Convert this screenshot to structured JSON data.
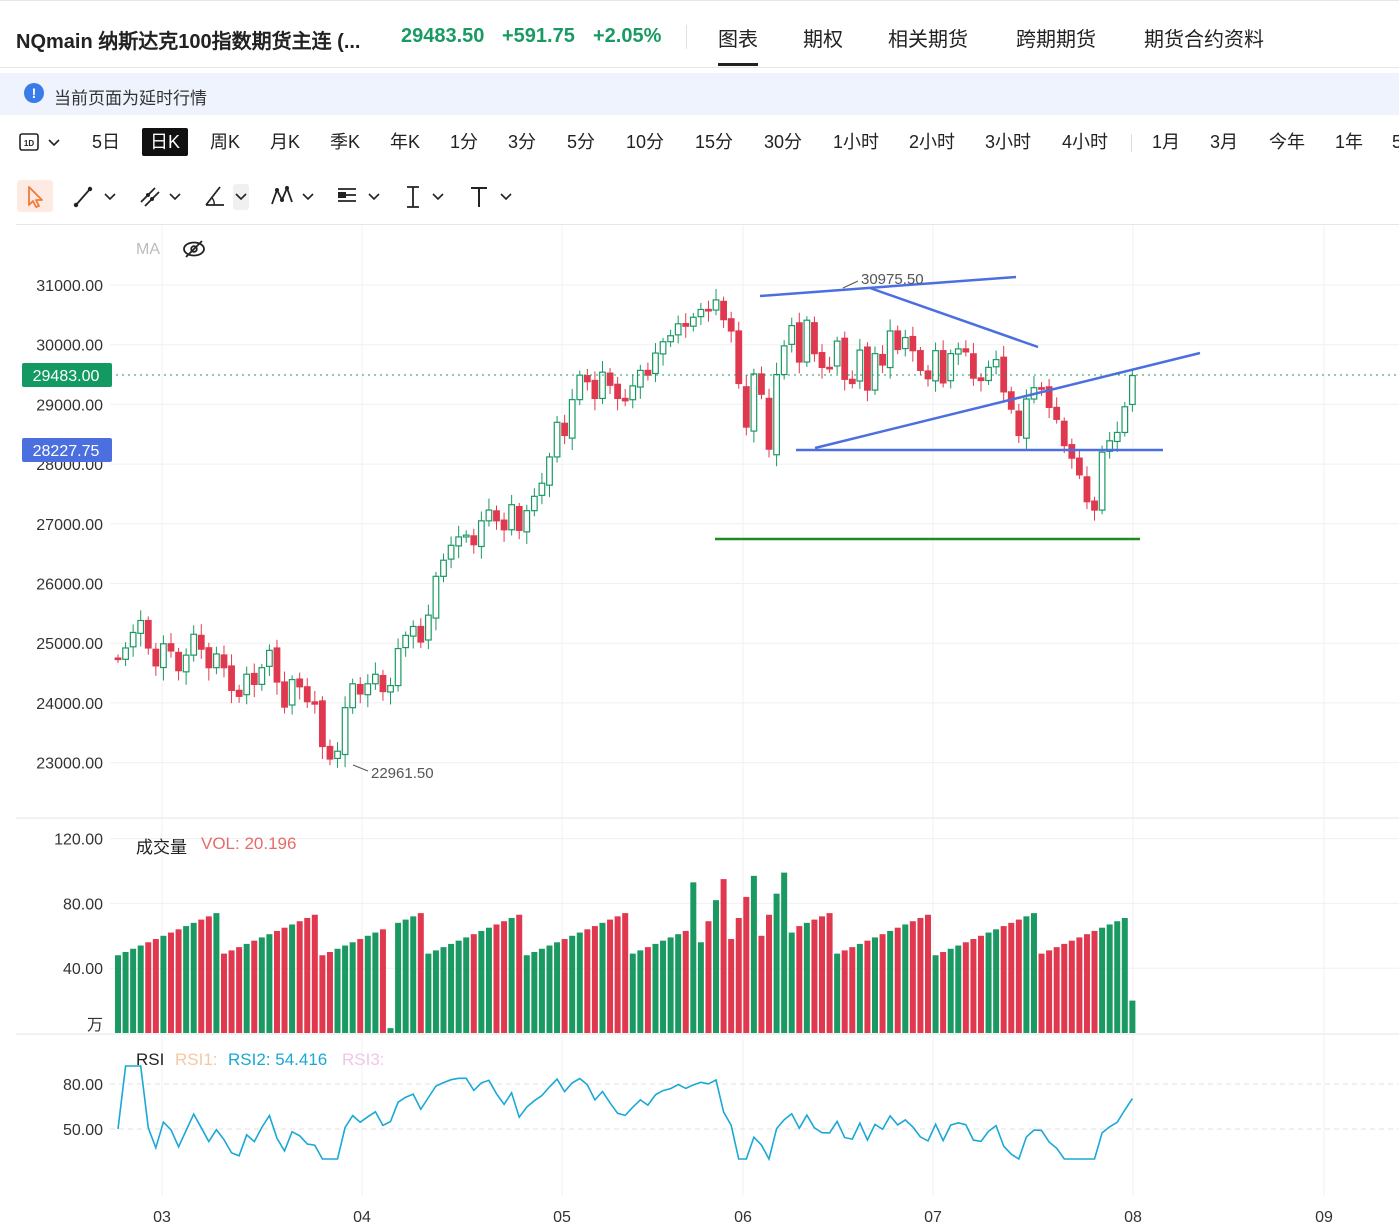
{
  "header": {
    "title": "NQmain 纳斯达克100指数期货主连 (...",
    "last_price": "29483.50",
    "change": "+591.75",
    "change_pct": "+2.05%",
    "tabs": [
      {
        "label": "图表",
        "active": true
      },
      {
        "label": "期权",
        "active": false
      },
      {
        "label": "相关期货",
        "active": false
      },
      {
        "label": "跨期期货",
        "active": false
      },
      {
        "label": "期货合约资料",
        "active": false
      }
    ]
  },
  "notice": {
    "icon": "info-icon",
    "text": "当前页面为延时行情"
  },
  "timeframes": {
    "dropdown_label": "1D",
    "items": [
      "5日",
      "日K",
      "周K",
      "月K",
      "季K",
      "年K",
      "1分",
      "3分",
      "5分",
      "10分",
      "15分",
      "30分",
      "1小时",
      "2小时",
      "3小时",
      "4小时",
      "1月",
      "3月",
      "今年",
      "1年",
      "5"
    ],
    "active": "日K"
  },
  "tools": [
    "cursor-icon",
    "trend-line-icon",
    "channel-icon",
    "angle-icon",
    "pattern-icon",
    "fib-icon",
    "text-cursor-icon",
    "text-tool-icon"
  ],
  "colors": {
    "up": "#1a9a62",
    "down": "#e0384f",
    "drawing": "#4b6fe0",
    "support": "#1f8a1f",
    "accent_blue": "#3a7bea"
  },
  "main_panel": {
    "indicator_label": "MA",
    "y_ticks": [
      "31000.00",
      "30000.00",
      "29000.00",
      "28000.00",
      "27000.00",
      "26000.00",
      "25000.00",
      "24000.00",
      "23000.00"
    ],
    "current_price_label": "29483.00",
    "crosshair_label": "28227.75",
    "high_label": "30975.50",
    "low_label": "22961.50"
  },
  "volume_panel": {
    "label": "成交量",
    "vol_text": "VOL: 20.196",
    "y_ticks": [
      "120.00",
      "80.00",
      "40.00"
    ],
    "unit": "万"
  },
  "rsi_panel": {
    "label": "RSI",
    "rsi1": "RSI1:",
    "rsi2": "RSI2: 54.416",
    "rsi3": "RSI3:",
    "y_ticks": [
      "80.00",
      "50.00"
    ]
  },
  "x_axis": [
    "03",
    "04",
    "05",
    "06",
    "07",
    "08",
    "09"
  ],
  "chart_data": {
    "type": "candlestick",
    "x_range": [
      "2025-02-24",
      "2025-08-04"
    ],
    "ylim": [
      22500,
      31500
    ],
    "closes": [
      24730,
      24920,
      25180,
      25380,
      24920,
      24620,
      24990,
      24870,
      24540,
      24800,
      25150,
      24900,
      24590,
      24820,
      24590,
      24210,
      24110,
      24480,
      24310,
      24590,
      24880,
      24350,
      23930,
      24390,
      24270,
      24020,
      23980,
      23270,
      23060,
      23190,
      23920,
      24320,
      24150,
      24320,
      24480,
      24190,
      24290,
      24910,
      25130,
      25280,
      25020,
      25470,
      26120,
      26390,
      26640,
      26780,
      26810,
      26650,
      27050,
      27230,
      27050,
      26900,
      27320,
      26890,
      27220,
      27460,
      27680,
      28120,
      28700,
      28480,
      29080,
      29490,
      29380,
      29100,
      29540,
      29320,
      29100,
      29060,
      29310,
      29570,
      29490,
      29860,
      30050,
      30150,
      30350,
      30310,
      30460,
      30590,
      30580,
      30750,
      30420,
      30230,
      29350,
      28620,
      29510,
      29170,
      28250,
      29500,
      29980,
      30320,
      29710,
      30410,
      29850,
      29620,
      29610,
      30060,
      29420,
      29350,
      29910,
      29240,
      29850,
      29660,
      30230,
      29920,
      30120,
      29900,
      29570,
      29430,
      29900,
      29360,
      29850,
      29930,
      29880,
      29440,
      29400,
      29620,
      29750,
      29210,
      28920,
      28480,
      29090,
      29280,
      29270,
      28950,
      28750,
      28310,
      28100,
      27820,
      27370,
      27230,
      28200,
      28390,
      28530,
      28960,
      29483
    ],
    "volume": {
      "ylim": [
        0,
        120
      ],
      "unit": "万"
    },
    "rsi": {
      "ylim": [
        25,
        95
      ],
      "reference_levels": [
        80,
        50
      ]
    },
    "annotations": [
      {
        "type": "high",
        "value": 30975.5
      },
      {
        "type": "low",
        "value": 22961.5
      },
      {
        "type": "current_price",
        "value": 29483.0
      },
      {
        "type": "crosshair",
        "value": 28227.75
      }
    ]
  }
}
